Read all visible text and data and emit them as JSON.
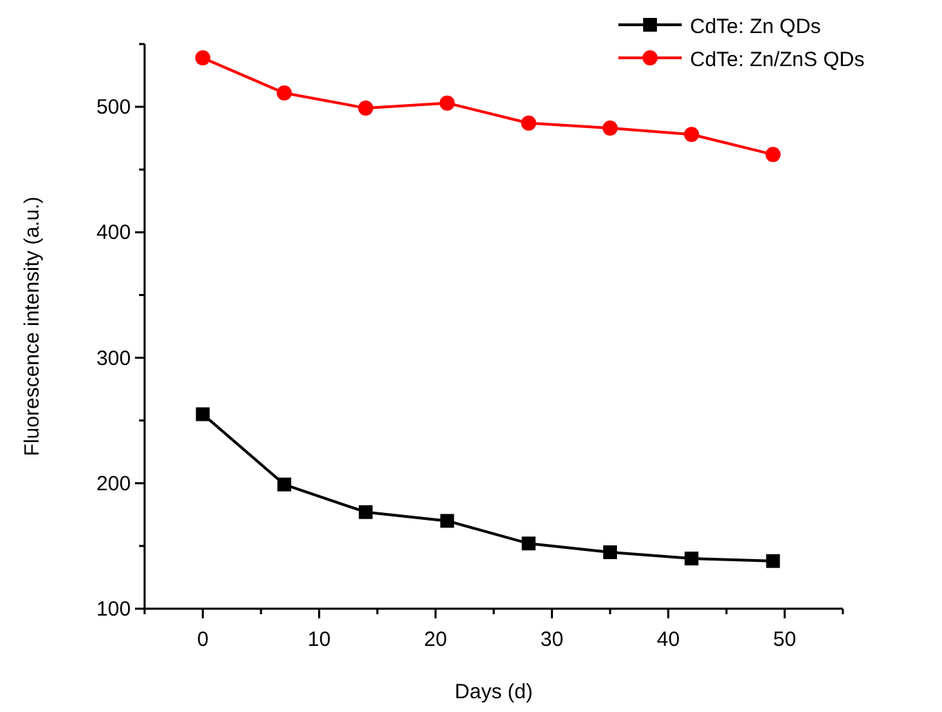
{
  "chart_data": {
    "type": "line",
    "xlabel": "Days (d)",
    "ylabel": "Fluorescence intensity (a.u.)",
    "x": [
      0,
      7,
      14,
      21,
      28,
      35,
      42,
      49
    ],
    "series": [
      {
        "name": "CdTe: Zn QDs",
        "color": "#000000",
        "marker": "square",
        "values": [
          255,
          199,
          177,
          170,
          152,
          145,
          140,
          138
        ]
      },
      {
        "name": "CdTe: Zn/ZnS QDs",
        "color": "#ff0000",
        "marker": "circle",
        "values": [
          539,
          511,
          499,
          503,
          487,
          483,
          478,
          462
        ]
      }
    ],
    "xlim": [
      -5,
      55
    ],
    "xticks": [
      {
        "value": -5,
        "label": null
      },
      0,
      {
        "value": 5,
        "label": null
      },
      10,
      {
        "value": 15,
        "label": null
      },
      20,
      {
        "value": 25,
        "label": null
      },
      30,
      {
        "value": 35,
        "label": null
      },
      40,
      {
        "value": 45,
        "label": null
      },
      50,
      {
        "value": 55,
        "label": null
      }
    ],
    "ylim": [
      100,
      550
    ],
    "yticks": [
      100,
      {
        "value": 150,
        "label": null
      },
      200,
      {
        "value": 250,
        "label": null
      },
      300,
      {
        "value": 350,
        "label": null
      },
      400,
      {
        "value": 450,
        "label": null
      },
      500,
      {
        "value": 550,
        "label": null
      }
    ],
    "grid": false,
    "legend": "top right",
    "line_style": "solid"
  }
}
